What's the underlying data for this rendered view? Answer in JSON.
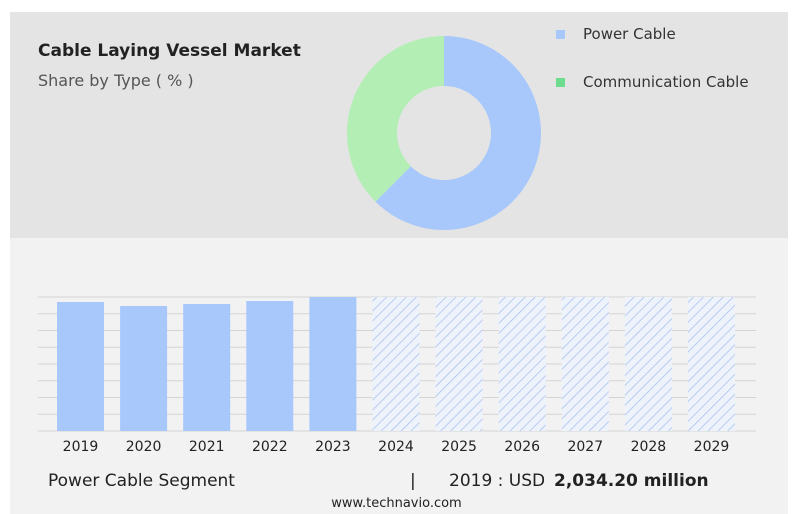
{
  "header": {
    "title": "Cable Laying Vessel Market",
    "subtitle": "Share by Type ( % )"
  },
  "colors": {
    "power": "#a8c8fc",
    "communication": "#b3eeb5",
    "communication_legend": "#6ddc8e"
  },
  "chart_data": [
    {
      "type": "pie",
      "donut": true,
      "title": "Share by Type ( % )",
      "legend": [
        {
          "label": "Power Cable",
          "value": 62.5
        },
        {
          "label": "Communication Cable",
          "value": 37.5
        }
      ],
      "legend_placement": "right"
    },
    {
      "type": "bar",
      "categories": [
        "2019",
        "2020",
        "2021",
        "2022",
        "2023",
        "2024",
        "2025",
        "2026",
        "2027",
        "2028",
        "2029"
      ],
      "values": [
        2034.2,
        1972,
        2003,
        2050,
        2113,
        null,
        null,
        null,
        null,
        null,
        null
      ],
      "forecast": [
        "2024",
        "2025",
        "2026",
        "2027",
        "2028",
        "2029"
      ],
      "ylim": [
        0,
        2113
      ],
      "grid": true
    }
  ],
  "footer": {
    "segment": "Power Cable Segment",
    "separator": "|",
    "year_label": "2019 : USD",
    "value": "2,034.20 million",
    "url": "www.technavio.com"
  }
}
